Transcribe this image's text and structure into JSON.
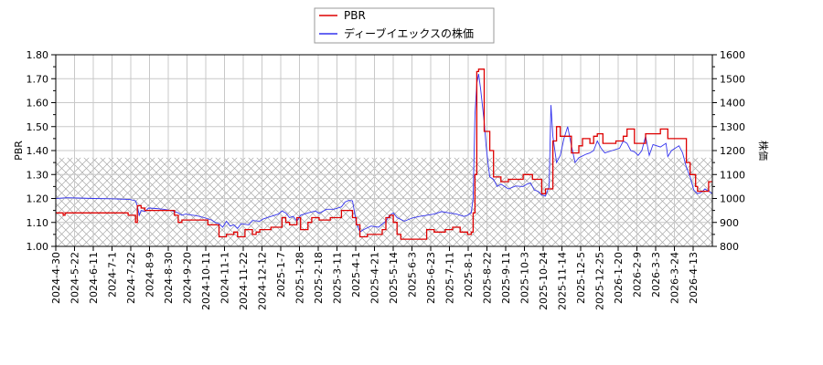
{
  "chart_data": {
    "type": "line",
    "title": "",
    "legend": {
      "position": "top-center",
      "entries": [
        {
          "label": "PBR",
          "color": "#dd0000"
        },
        {
          "label": "ディーブイエックスの株価",
          "color": "#3333ee"
        }
      ]
    },
    "xlabel": "",
    "ylabel_left": "PBR",
    "ylabel_right": "株価",
    "ylim_left": [
      1.0,
      1.8
    ],
    "ylim_right": [
      800,
      1600
    ],
    "yticks_left": [
      "1.00",
      "1.10",
      "1.20",
      "1.30",
      "1.40",
      "1.50",
      "1.60",
      "1.70",
      "1.80"
    ],
    "yticks_right": [
      "800",
      "900",
      "1000",
      "1100",
      "1200",
      "1300",
      "1400",
      "1500",
      "1600"
    ],
    "grid": true,
    "hatched_band": {
      "from": 1.0,
      "to": 1.37,
      "axis": "left"
    },
    "x_tick_labels": [
      "2024-4-30",
      "2024-5-22",
      "2024-6-11",
      "2024-7-1",
      "2024-7-22",
      "2024-8-9",
      "2024-8-30",
      "2024-9-20",
      "2024-10-11",
      "2024-11-1",
      "2024-11-22",
      "2024-12-12",
      "2025-1-7",
      "2025-1-28",
      "2025-2-18",
      "2025-3-11",
      "2025-4-1",
      "2025-4-21",
      "2025-5-14",
      "2025-6-3",
      "2025-6-23",
      "2025-7-11",
      "2025-8-1",
      "2025-8-22",
      "2025-9-11",
      "2025-10-3",
      "2025-10-24",
      "2025-11-14",
      "2025-12-5",
      "2025-12-25",
      "2026-1-20",
      "2026-2-9",
      "2026-3-3",
      "2026-3-24",
      "2026-4-13"
    ],
    "series": [
      {
        "name": "PBR",
        "axis": "left",
        "color": "#dd0000",
        "points": [
          [
            0,
            1.14
          ],
          [
            3,
            1.14
          ],
          [
            4,
            1.13
          ],
          [
            5,
            1.14
          ],
          [
            18,
            1.14
          ],
          [
            38,
            1.14
          ],
          [
            39,
            1.13
          ],
          [
            42,
            1.13
          ],
          [
            43,
            1.1
          ],
          [
            44,
            1.17
          ],
          [
            46,
            1.16
          ],
          [
            48,
            1.15
          ],
          [
            60,
            1.15
          ],
          [
            64,
            1.13
          ],
          [
            66,
            1.1
          ],
          [
            68,
            1.11
          ],
          [
            80,
            1.11
          ],
          [
            82,
            1.09
          ],
          [
            86,
            1.09
          ],
          [
            88,
            1.04
          ],
          [
            92,
            1.05
          ],
          [
            96,
            1.06
          ],
          [
            98,
            1.04
          ],
          [
            101,
            1.04
          ],
          [
            102,
            1.07
          ],
          [
            104,
            1.07
          ],
          [
            106,
            1.05
          ],
          [
            108,
            1.06
          ],
          [
            110,
            1.07
          ],
          [
            114,
            1.07
          ],
          [
            116,
            1.08
          ],
          [
            120,
            1.08
          ],
          [
            122,
            1.12
          ],
          [
            124,
            1.1
          ],
          [
            126,
            1.09
          ],
          [
            128,
            1.09
          ],
          [
            130,
            1.12
          ],
          [
            132,
            1.07
          ],
          [
            135,
            1.07
          ],
          [
            136,
            1.1
          ],
          [
            138,
            1.12
          ],
          [
            142,
            1.11
          ],
          [
            146,
            1.11
          ],
          [
            148,
            1.12
          ],
          [
            152,
            1.12
          ],
          [
            154,
            1.15
          ],
          [
            158,
            1.15
          ],
          [
            160,
            1.12
          ],
          [
            162,
            1.09
          ],
          [
            164,
            1.04
          ],
          [
            168,
            1.05
          ],
          [
            174,
            1.05
          ],
          [
            176,
            1.07
          ],
          [
            178,
            1.12
          ],
          [
            180,
            1.13
          ],
          [
            182,
            1.1
          ],
          [
            184,
            1.05
          ],
          [
            186,
            1.03
          ],
          [
            198,
            1.03
          ],
          [
            200,
            1.07
          ],
          [
            204,
            1.06
          ],
          [
            210,
            1.07
          ],
          [
            214,
            1.08
          ],
          [
            216,
            1.08
          ],
          [
            218,
            1.06
          ],
          [
            222,
            1.05
          ],
          [
            224,
            1.06
          ],
          [
            225,
            1.14
          ],
          [
            226,
            1.3
          ],
          [
            227,
            1.73
          ],
          [
            228,
            1.74
          ],
          [
            230,
            1.74
          ],
          [
            231,
            1.48
          ],
          [
            233,
            1.48
          ],
          [
            234,
            1.4
          ],
          [
            236,
            1.29
          ],
          [
            239,
            1.29
          ],
          [
            240,
            1.27
          ],
          [
            244,
            1.28
          ],
          [
            248,
            1.28
          ],
          [
            252,
            1.3
          ],
          [
            256,
            1.3
          ],
          [
            257,
            1.28
          ],
          [
            262,
            1.22
          ],
          [
            264,
            1.24
          ],
          [
            266,
            1.24
          ],
          [
            268,
            1.44
          ],
          [
            270,
            1.5
          ],
          [
            272,
            1.46
          ],
          [
            276,
            1.46
          ],
          [
            278,
            1.39
          ],
          [
            282,
            1.42
          ],
          [
            284,
            1.45
          ],
          [
            286,
            1.45
          ],
          [
            288,
            1.43
          ],
          [
            290,
            1.46
          ],
          [
            292,
            1.47
          ],
          [
            295,
            1.43
          ],
          [
            302,
            1.44
          ],
          [
            306,
            1.46
          ],
          [
            308,
            1.49
          ],
          [
            311,
            1.49
          ],
          [
            312,
            1.43
          ],
          [
            316,
            1.43
          ],
          [
            318,
            1.47
          ],
          [
            324,
            1.47
          ],
          [
            326,
            1.49
          ],
          [
            329,
            1.49
          ],
          [
            330,
            1.45
          ],
          [
            334,
            1.45
          ],
          [
            340,
            1.35
          ],
          [
            342,
            1.3
          ],
          [
            345,
            1.25
          ],
          [
            346,
            1.23
          ],
          [
            350,
            1.23
          ],
          [
            352,
            1.27
          ],
          [
            354,
            1.27
          ]
        ]
      },
      {
        "name": "ディーブイエックスの株価",
        "axis": "right",
        "color": "#3333ee",
        "points": [
          [
            0,
            1000
          ],
          [
            6,
            1003
          ],
          [
            12,
            1002
          ],
          [
            20,
            1000
          ],
          [
            30,
            999
          ],
          [
            40,
            996
          ],
          [
            43,
            990
          ],
          [
            44,
            968
          ],
          [
            45,
            930
          ],
          [
            46,
            950
          ],
          [
            48,
            945
          ],
          [
            50,
            960
          ],
          [
            54,
            958
          ],
          [
            58,
            955
          ],
          [
            62,
            950
          ],
          [
            66,
            940
          ],
          [
            68,
            930
          ],
          [
            70,
            935
          ],
          [
            72,
            932
          ],
          [
            76,
            928
          ],
          [
            80,
            920
          ],
          [
            84,
            910
          ],
          [
            86,
            900
          ],
          [
            88,
            895
          ],
          [
            90,
            880
          ],
          [
            92,
            905
          ],
          [
            94,
            885
          ],
          [
            96,
            890
          ],
          [
            98,
            875
          ],
          [
            100,
            895
          ],
          [
            104,
            890
          ],
          [
            106,
            908
          ],
          [
            110,
            905
          ],
          [
            112,
            915
          ],
          [
            116,
            925
          ],
          [
            120,
            935
          ],
          [
            122,
            948
          ],
          [
            124,
            940
          ],
          [
            126,
            920
          ],
          [
            128,
            925
          ],
          [
            130,
            905
          ],
          [
            132,
            930
          ],
          [
            136,
            940
          ],
          [
            140,
            948
          ],
          [
            142,
            938
          ],
          [
            146,
            955
          ],
          [
            150,
            955
          ],
          [
            154,
            965
          ],
          [
            156,
            985
          ],
          [
            158,
            992
          ],
          [
            160,
            990
          ],
          [
            162,
            900
          ],
          [
            164,
            860
          ],
          [
            166,
            870
          ],
          [
            170,
            885
          ],
          [
            174,
            880
          ],
          [
            178,
            905
          ],
          [
            180,
            930
          ],
          [
            182,
            940
          ],
          [
            184,
            920
          ],
          [
            188,
            905
          ],
          [
            192,
            918
          ],
          [
            196,
            925
          ],
          [
            200,
            930
          ],
          [
            204,
            935
          ],
          [
            208,
            945
          ],
          [
            212,
            940
          ],
          [
            216,
            935
          ],
          [
            220,
            925
          ],
          [
            222,
            930
          ],
          [
            224,
            940
          ],
          [
            225,
            1000
          ],
          [
            226,
            1350
          ],
          [
            227,
            1480
          ],
          [
            228,
            1520
          ],
          [
            229,
            1460
          ],
          [
            231,
            1320
          ],
          [
            232,
            1220
          ],
          [
            233,
            1150
          ],
          [
            234,
            1090
          ],
          [
            236,
            1080
          ],
          [
            238,
            1050
          ],
          [
            240,
            1060
          ],
          [
            244,
            1040
          ],
          [
            248,
            1052
          ],
          [
            252,
            1050
          ],
          [
            254,
            1060
          ],
          [
            256,
            1065
          ],
          [
            258,
            1035
          ],
          [
            260,
            1030
          ],
          [
            262,
            1015
          ],
          [
            264,
            1010
          ],
          [
            266,
            1050
          ],
          [
            267,
            1390
          ],
          [
            268,
            1260
          ],
          [
            270,
            1150
          ],
          [
            272,
            1180
          ],
          [
            274,
            1250
          ],
          [
            276,
            1300
          ],
          [
            278,
            1220
          ],
          [
            280,
            1150
          ],
          [
            282,
            1170
          ],
          [
            286,
            1185
          ],
          [
            288,
            1190
          ],
          [
            290,
            1200
          ],
          [
            292,
            1240
          ],
          [
            294,
            1210
          ],
          [
            296,
            1190
          ],
          [
            300,
            1200
          ],
          [
            304,
            1210
          ],
          [
            306,
            1240
          ],
          [
            308,
            1230
          ],
          [
            310,
            1200
          ],
          [
            312,
            1195
          ],
          [
            314,
            1180
          ],
          [
            316,
            1200
          ],
          [
            318,
            1260
          ],
          [
            320,
            1180
          ],
          [
            322,
            1225
          ],
          [
            326,
            1215
          ],
          [
            328,
            1225
          ],
          [
            329,
            1230
          ],
          [
            330,
            1175
          ],
          [
            332,
            1200
          ],
          [
            334,
            1210
          ],
          [
            336,
            1220
          ],
          [
            338,
            1190
          ],
          [
            340,
            1130
          ],
          [
            342,
            1090
          ],
          [
            344,
            1035
          ],
          [
            346,
            1020
          ],
          [
            348,
            1025
          ],
          [
            350,
            1040
          ],
          [
            352,
            1030
          ],
          [
            354,
            1020
          ]
        ]
      }
    ]
  }
}
